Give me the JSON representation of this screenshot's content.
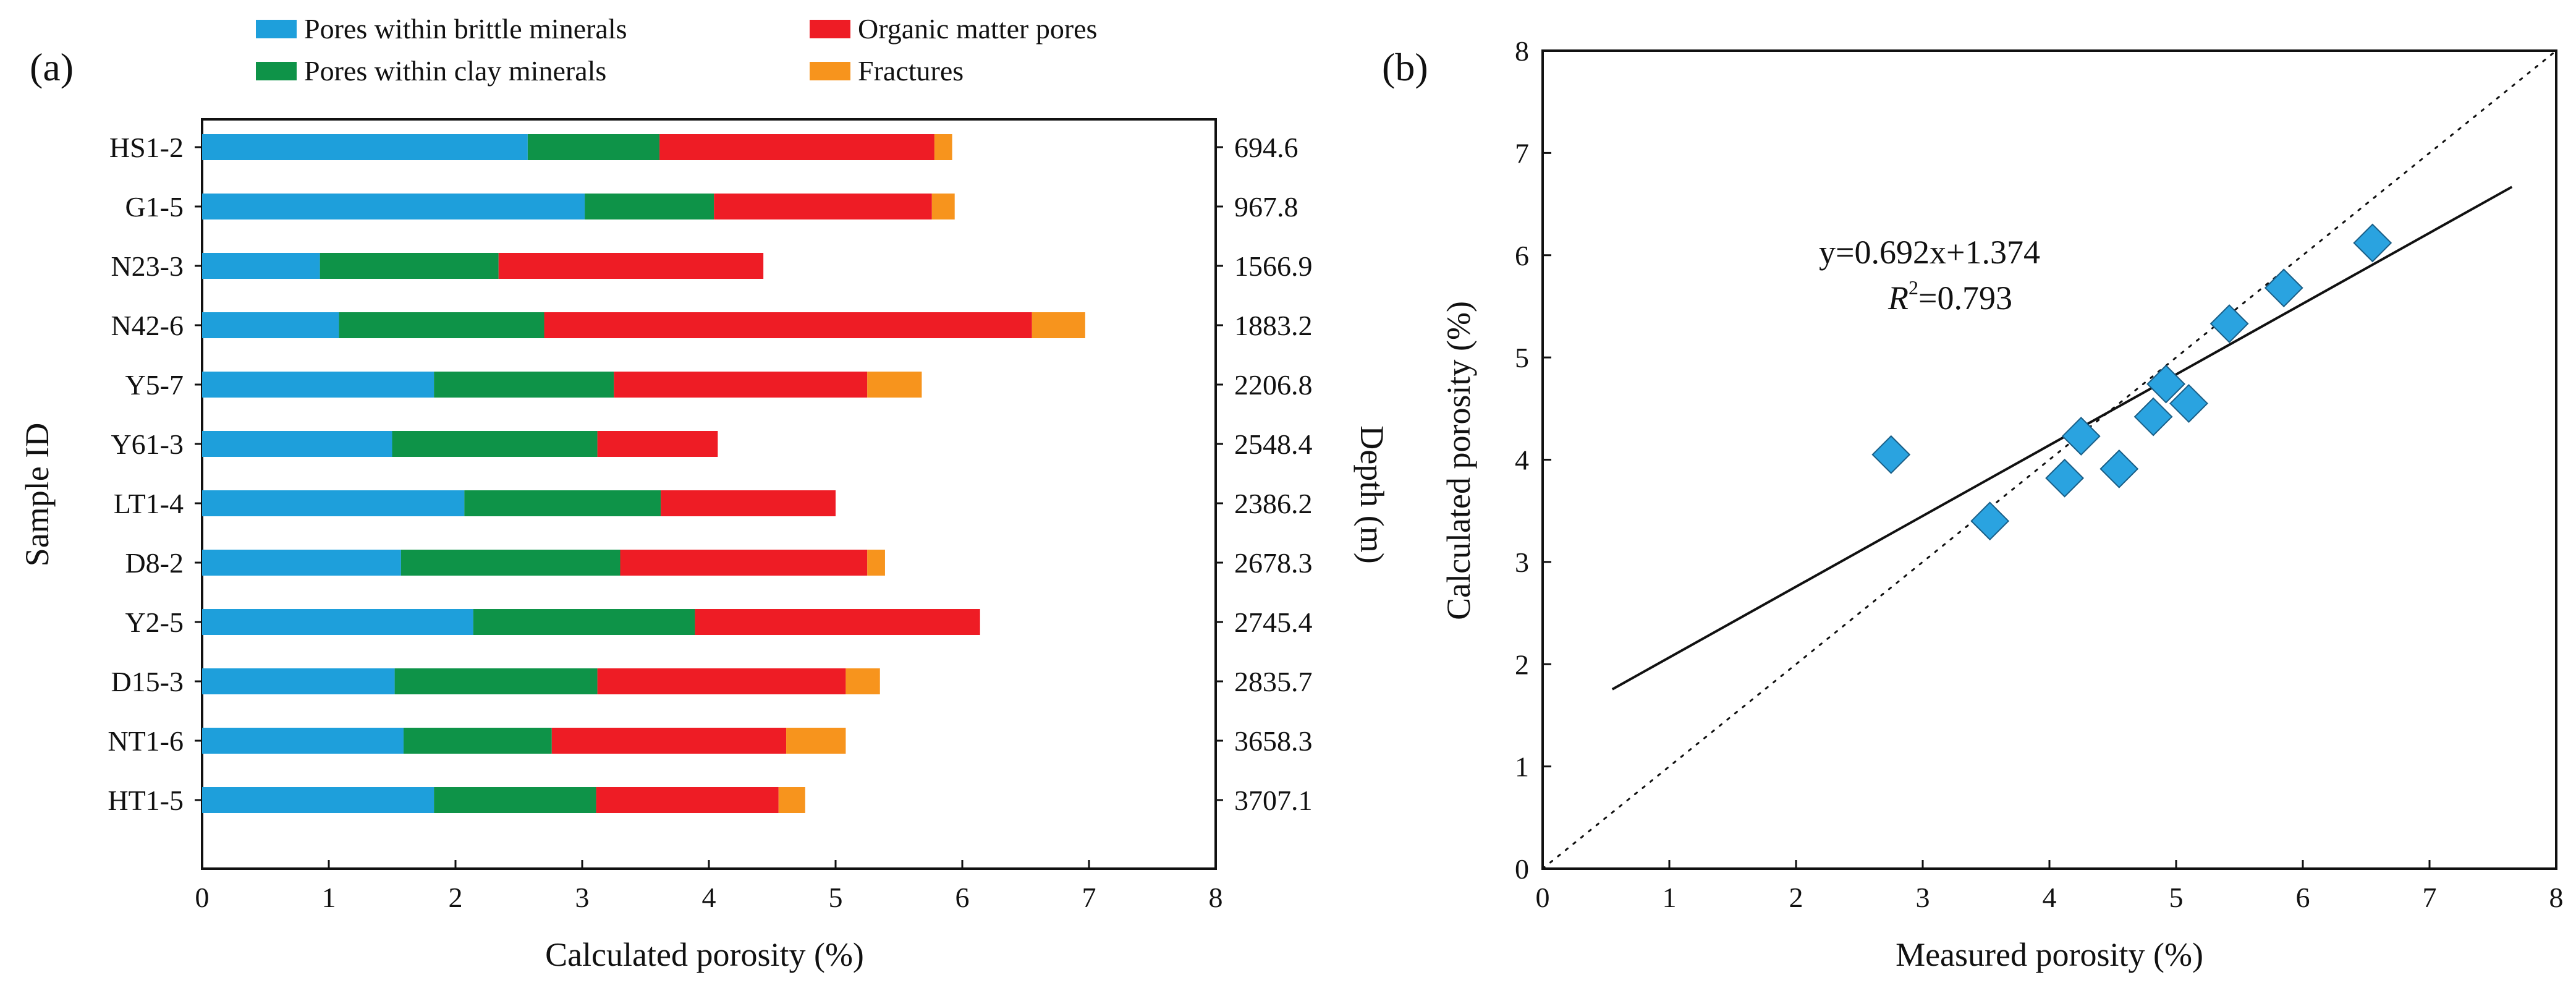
{
  "colors": {
    "brittle": "#1E9FDB",
    "clay": "#0E9348",
    "organic": "#EE1C25",
    "fractures": "#F7941D",
    "axis": "#111111",
    "marker": "#2AA3E0",
    "marker_edge": "#1A5E86"
  },
  "legend": {
    "brittle": "Pores within brittle minerals",
    "organic": "Organic matter pores",
    "clay": "Pores within clay minerals",
    "fractures": "Fractures"
  },
  "chart_data": [
    {
      "panel": "(a)",
      "type": "bar",
      "orientation": "horizontal",
      "stacked": true,
      "xlabel": "Calculated porosity (%)",
      "ylabel": "Sample ID",
      "y2label": "Depth (m)",
      "xlim": [
        0,
        8
      ],
      "xticks": [
        "0",
        "1",
        "2",
        "3",
        "4",
        "5",
        "6",
        "7",
        "8"
      ],
      "categories": [
        "HS1-2",
        "G1-5",
        "N23-3",
        "N42-6",
        "Y5-7",
        "Y61-3",
        "LT1-4",
        "D8-2",
        "Y2-5",
        "D15-3",
        "NT1-6",
        "HT1-5"
      ],
      "depths": [
        "694.6",
        "967.8",
        "1566.9",
        "1883.2",
        "2206.8",
        "2548.4",
        "2386.2",
        "2678.3",
        "2745.4",
        "2835.7",
        "3658.3",
        "3707.1"
      ],
      "series": [
        {
          "name": "Pores within brittle minerals",
          "key": "brittle",
          "values": [
            2.57,
            3.02,
            0.93,
            1.08,
            1.83,
            1.5,
            2.07,
            1.57,
            2.14,
            1.52,
            1.59,
            1.83
          ]
        },
        {
          "name": "Pores within clay minerals",
          "key": "clay",
          "values": [
            1.04,
            1.02,
            1.41,
            1.62,
            1.42,
            1.62,
            1.55,
            1.73,
            1.75,
            1.6,
            1.17,
            1.28
          ]
        },
        {
          "name": "Organic matter pores",
          "key": "organic",
          "values": [
            2.17,
            1.72,
            2.09,
            3.85,
            2.0,
            0.95,
            1.38,
            1.95,
            2.25,
            1.96,
            1.85,
            1.44
          ]
        },
        {
          "name": "Fractures",
          "key": "fractures",
          "values": [
            0.14,
            0.18,
            0.0,
            0.42,
            0.43,
            0.0,
            0.0,
            0.14,
            0.0,
            0.27,
            0.47,
            0.21
          ]
        }
      ]
    },
    {
      "panel": "(b)",
      "type": "scatter",
      "xlabel": "Measured porosity (%)",
      "ylabel": "Calculated porosity (%)",
      "xlim": [
        0,
        8
      ],
      "ylim": [
        0,
        8
      ],
      "xticks": [
        "0",
        "1",
        "2",
        "3",
        "4",
        "5",
        "6",
        "7",
        "8"
      ],
      "yticks": [
        "0",
        "1",
        "2",
        "3",
        "4",
        "5",
        "6",
        "7",
        "8"
      ],
      "points": [
        {
          "x": 2.75,
          "y": 4.05
        },
        {
          "x": 3.53,
          "y": 3.4
        },
        {
          "x": 4.12,
          "y": 3.82
        },
        {
          "x": 4.55,
          "y": 3.91
        },
        {
          "x": 4.25,
          "y": 4.23
        },
        {
          "x": 4.82,
          "y": 4.42
        },
        {
          "x": 4.92,
          "y": 4.74
        },
        {
          "x": 5.1,
          "y": 4.55
        },
        {
          "x": 5.42,
          "y": 5.33
        },
        {
          "x": 5.85,
          "y": 5.68
        },
        {
          "x": 6.55,
          "y": 6.12
        }
      ],
      "fit": {
        "slope": 0.692,
        "intercept": 1.374,
        "x_range": [
          0.55,
          7.65
        ]
      },
      "diagonal": [
        0,
        8
      ],
      "equation": "y=0.692x+1.374",
      "r2_label": "R",
      "r2_sup": "2",
      "r2_value": "=0.793"
    }
  ]
}
